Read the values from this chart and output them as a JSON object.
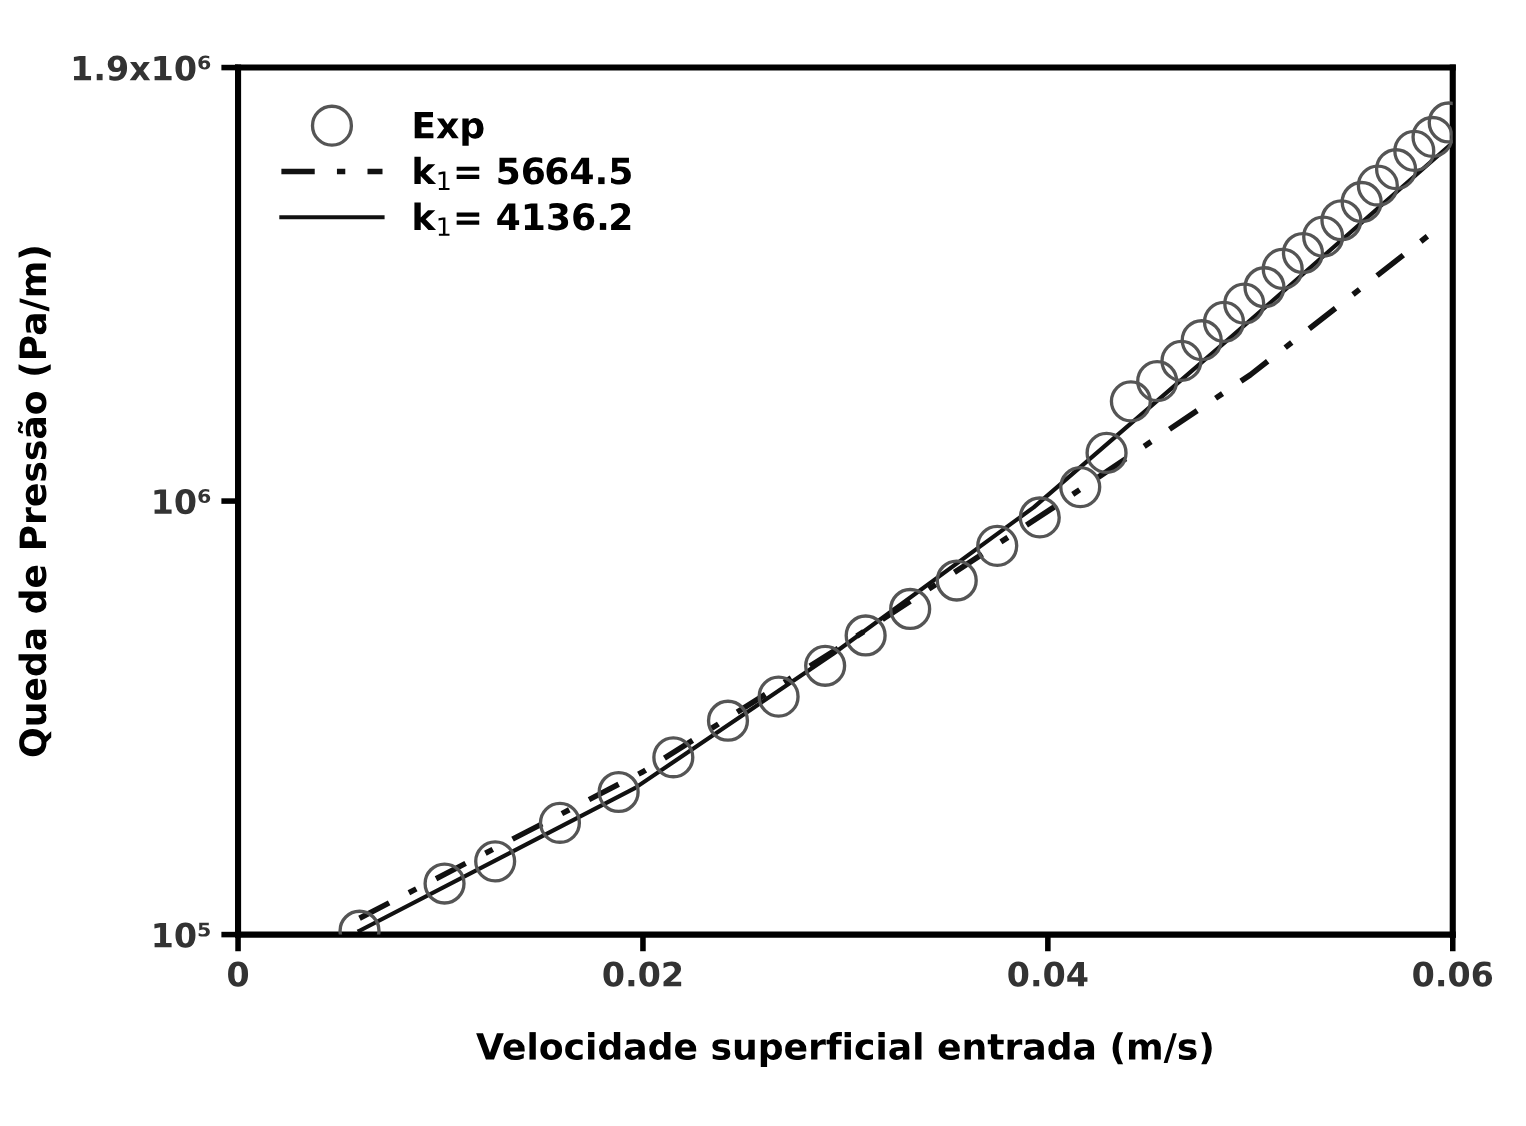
{
  "chart_data": {
    "type": "scatter",
    "xlabel": "Velocidade superficial entrada (m/s)",
    "ylabel": "Queda de Pressão (Pa/m)",
    "xlim": [
      0,
      0.06
    ],
    "xticks": [
      0,
      0.02,
      0.04,
      0.06
    ],
    "ylim": [
      100000,
      1900000
    ],
    "yticks": [
      {
        "value": 100000,
        "label": "10⁵"
      },
      {
        "value": 1000000,
        "label": "10⁶"
      },
      {
        "value": 1900000,
        "label": "1.9x10⁶"
      }
    ],
    "grid": false,
    "legend": "top left",
    "series": [
      {
        "name": "Exp",
        "marker": "circle",
        "color": "#555555",
        "x": [
          0.006,
          0.0102,
          0.0127,
          0.0159,
          0.0188,
          0.0215,
          0.0242,
          0.0267,
          0.029,
          0.031,
          0.0332,
          0.0355,
          0.0375,
          0.0396,
          0.0416,
          0.0429,
          0.0441,
          0.0454,
          0.0466,
          0.0476,
          0.0487,
          0.0497,
          0.0507,
          0.0516,
          0.0526,
          0.0536,
          0.0545,
          0.0555,
          0.0563,
          0.0572,
          0.0581,
          0.059,
          0.0598
        ],
        "values": [
          108000,
          206000,
          252000,
          332000,
          396000,
          468000,
          544000,
          594000,
          658000,
          721000,
          776000,
          835000,
          907000,
          966000,
          1029000,
          1100000,
          1207000,
          1249000,
          1291000,
          1334000,
          1372000,
          1410000,
          1444000,
          1482000,
          1515000,
          1549000,
          1583000,
          1621000,
          1655000,
          1689000,
          1727000,
          1756000,
          1786000
        ]
      },
      {
        "name": "k$_{1}$= 5664.5",
        "type": "line",
        "line_style": "dashdot",
        "color": "#111111",
        "x": [
          0.006,
          0.02,
          0.03,
          0.04,
          0.05,
          0.059
        ],
        "values": [
          134000,
          438000,
          704000,
          979000,
          1262000,
          1558000
        ]
      },
      {
        "name": "k$_{1}$= 4136.2",
        "type": "line",
        "line_style": "solid",
        "color": "#111111",
        "x": [
          0.006,
          0.0196,
          0.0294,
          0.0393,
          0.0492,
          0.06
        ],
        "values": [
          108000,
          404000,
          683000,
          987000,
          1346000,
          1744000
        ]
      }
    ]
  }
}
